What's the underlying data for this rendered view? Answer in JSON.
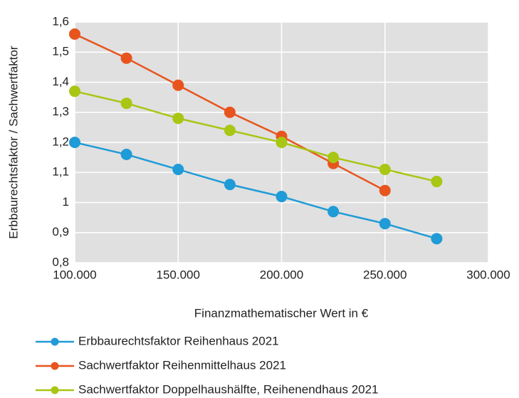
{
  "chart_data": {
    "type": "line",
    "xlabel": "Finanzmathematischer Wert in €",
    "ylabel": "Erbbaurechtsfaktor / Sachwertfaktor",
    "x": [
      100000,
      125000,
      150000,
      175000,
      200000,
      225000,
      250000,
      275000
    ],
    "series": [
      {
        "name": "Erbbaurechtsfaktor Reihenhaus 2021",
        "color": "#1f9bd7",
        "values": [
          1.2,
          1.16,
          1.11,
          1.06,
          1.02,
          0.97,
          0.93,
          0.88
        ]
      },
      {
        "name": "Sachwertfaktor Reihenmittelhaus 2021",
        "color": "#e8541e",
        "values": [
          1.56,
          1.48,
          1.39,
          1.3,
          1.22,
          1.13,
          1.04,
          null
        ]
      },
      {
        "name": "Sachwertfaktor Doppelhaushälfte, Reihenendhaus 2021",
        "color": "#a8c614",
        "values": [
          1.37,
          1.33,
          1.28,
          1.24,
          1.2,
          1.15,
          1.11,
          1.07
        ]
      }
    ],
    "xlim": [
      100000,
      300000
    ],
    "xticks": [
      {
        "value": 100000,
        "label": "100.000"
      },
      {
        "value": 150000,
        "label": "150.000"
      },
      {
        "value": 200000,
        "label": "200.000"
      },
      {
        "value": 250000,
        "label": "250.000"
      },
      {
        "value": 300000,
        "label": "300.000"
      }
    ],
    "ylim": [
      0.8,
      1.6
    ],
    "yticks": [
      {
        "value": 0.8,
        "label": "0,8"
      },
      {
        "value": 0.9,
        "label": "0,9"
      },
      1,
      {
        "value": 1.1,
        "label": "1,1"
      },
      {
        "value": 1.2,
        "label": "1,2"
      },
      {
        "value": 1.3,
        "label": "1,3"
      },
      {
        "value": 1.4,
        "label": "1,4"
      },
      {
        "value": 1.5,
        "label": "1,5"
      },
      {
        "value": 1.6,
        "label": "1,6"
      }
    ],
    "grid": true,
    "legend": "bottom"
  }
}
